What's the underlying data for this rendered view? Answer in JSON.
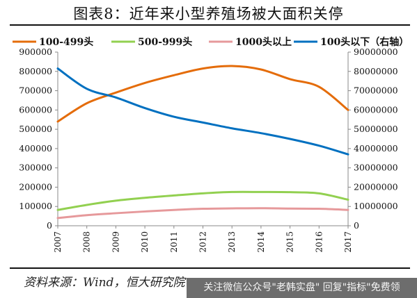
{
  "title": "图表8：近年来小型养殖场被大面积关停",
  "source": "资料来源：Wind，恒大研究院",
  "watermark": "关注微信公众号\"老韩实盘\" 回复\"指标\"免费领",
  "colors": {
    "series_100_499": "#e46c0a",
    "series_500_999": "#92d050",
    "series_1000_plus": "#e6999b",
    "series_under_100": "#0070c0"
  },
  "chart_data": {
    "type": "line",
    "title": "",
    "xlabel": "",
    "ylabel": "",
    "x": [
      "2007",
      "2008",
      "2009",
      "2010",
      "2011",
      "2012",
      "2013",
      "2014",
      "2015",
      "2016",
      "2017"
    ],
    "ylim_left": [
      0,
      900000
    ],
    "ylim_right": [
      0,
      90000000
    ],
    "yticks_left": [
      "0",
      "100000",
      "200000",
      "300000",
      "400000",
      "500000",
      "600000",
      "700000",
      "800000",
      "900000"
    ],
    "yticks_right": [
      "0",
      "10000000",
      "20000000",
      "30000000",
      "40000000",
      "50000000",
      "60000000",
      "70000000",
      "80000000",
      "90000000"
    ],
    "grid": false,
    "legend_position": "top",
    "series": [
      {
        "name": "100-499头",
        "axis": "left",
        "color": "#e46c0a",
        "values": [
          540000,
          635000,
          690000,
          740000,
          780000,
          815000,
          828000,
          810000,
          760000,
          720000,
          600000
        ]
      },
      {
        "name": "500-999头",
        "axis": "left",
        "color": "#92d050",
        "values": [
          82000,
          108000,
          130000,
          145000,
          157000,
          168000,
          175000,
          175000,
          174000,
          168000,
          135000
        ]
      },
      {
        "name": "1000头以上",
        "axis": "left",
        "color": "#e6999b",
        "values": [
          40000,
          55000,
          65000,
          74000,
          82000,
          88000,
          90000,
          91000,
          89000,
          88000,
          82000
        ]
      },
      {
        "name": "100头以下（右轴）",
        "axis": "right",
        "color": "#0070c0",
        "values": [
          81500000,
          71000000,
          66500000,
          61000000,
          56500000,
          53500000,
          50500000,
          48000000,
          45000000,
          41500000,
          37000000
        ]
      }
    ]
  }
}
